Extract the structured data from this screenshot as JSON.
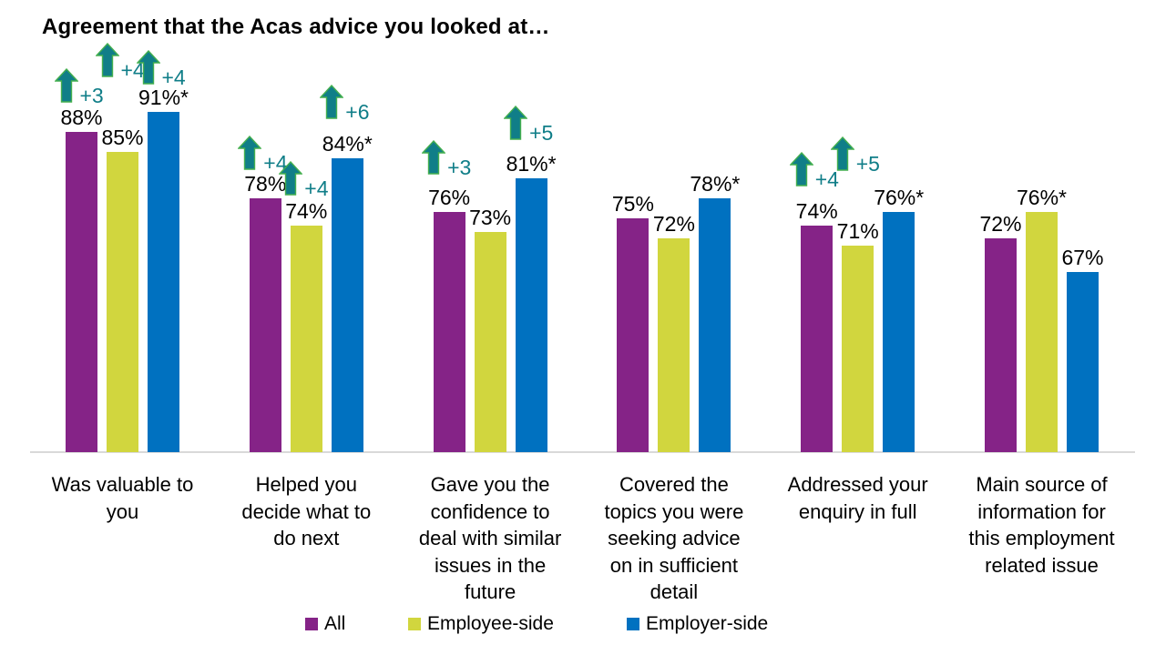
{
  "chart_data": {
    "type": "bar",
    "title": "Agreement that the Acas advice you looked at…",
    "xlabel": "",
    "ylabel": "",
    "axis": {
      "ymin": 40,
      "ymax": 100,
      "gridlines": false,
      "baseline_color": "#d9d9d9"
    },
    "legend_position": "bottom",
    "annotation_color": "#107e88",
    "annotation_arrow_stroke": "#44af4f",
    "series": [
      {
        "name": "All",
        "color": "#852387"
      },
      {
        "name": "Employee-side",
        "color": "#d1d63e"
      },
      {
        "name": "Employer-side",
        "color": "#0071c0"
      }
    ],
    "categories": [
      "Was valuable to\nyou",
      "Helped you\ndecide what to\ndo next",
      "Gave you the\nconfidence to\ndeal with similar\nissues in the\nfuture",
      "Covered the\ntopics you were\nseeking advice\non in sufficient\ndetail",
      "Addressed your\nenquiry in full",
      "Main source of\ninformation for\nthis employment\nrelated issue"
    ],
    "groups": [
      {
        "category": "Was valuable to\nyou",
        "bars": [
          {
            "series": "All",
            "value": 88,
            "label": "88%",
            "arrow": "+3",
            "arrow_gap": 32
          },
          {
            "series": "Employee-side",
            "value": 85,
            "label": "85%",
            "arrow": "+4",
            "arrow_gap": 82
          },
          {
            "series": "Employer-side",
            "value": 91,
            "label": "91%*",
            "arrow": "+4",
            "arrow_gap": 30
          }
        ]
      },
      {
        "category": "Helped you\ndecide what to\ndo next",
        "bars": [
          {
            "series": "All",
            "value": 78,
            "label": "78%",
            "arrow": "+4",
            "arrow_gap": 31
          },
          {
            "series": "Employee-side",
            "value": 74,
            "label": "74%",
            "arrow": "+4",
            "arrow_gap": 33
          },
          {
            "series": "Employer-side",
            "value": 84,
            "label": "84%*",
            "arrow": "+6",
            "arrow_gap": 43
          }
        ]
      },
      {
        "category": "Gave you the\nconfidence to\ndeal with similar\nissues in the\nfuture",
        "bars": [
          {
            "series": "All",
            "value": 76,
            "label": "76%",
            "arrow": "+3",
            "arrow_gap": 41
          },
          {
            "series": "Employee-side",
            "value": 73,
            "label": "73%"
          },
          {
            "series": "Employer-side",
            "value": 81,
            "label": "81%*",
            "arrow": "+5",
            "arrow_gap": 42
          }
        ]
      },
      {
        "category": "Covered the\ntopics you were\nseeking advice\non in sufficient\ndetail",
        "bars": [
          {
            "series": "All",
            "value": 75,
            "label": "75%"
          },
          {
            "series": "Employee-side",
            "value": 72,
            "label": "72%"
          },
          {
            "series": "Employer-side",
            "value": 78,
            "label": "78%*"
          }
        ]
      },
      {
        "category": "Addressed your\nenquiry in full",
        "bars": [
          {
            "series": "All",
            "value": 74,
            "label": "74%",
            "arrow": "+4",
            "arrow_gap": 43
          },
          {
            "series": "Employee-side",
            "value": 71,
            "label": "71%",
            "arrow": "+5",
            "arrow_gap": 82
          },
          {
            "series": "Employer-side",
            "value": 76,
            "label": "76%*"
          }
        ]
      },
      {
        "category": "Main source of\ninformation for\nthis employment\nrelated issue",
        "bars": [
          {
            "series": "All",
            "value": 72,
            "label": "72%"
          },
          {
            "series": "Employee-side",
            "value": 76,
            "label": "76%*"
          },
          {
            "series": "Employer-side",
            "value": 67,
            "label": "67%"
          }
        ]
      }
    ]
  }
}
